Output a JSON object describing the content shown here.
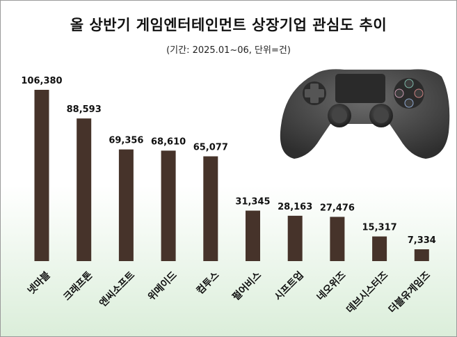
{
  "chart_data": {
    "type": "bar",
    "title": "올 상반기 게임엔터테인먼트 상장기업 관심도 추이",
    "subtitle": "(기간: 2025.01~06, 단위=건)",
    "categories": [
      "넷마블",
      "크래프톤",
      "엔씨소프트",
      "위메이드",
      "컴투스",
      "펄어비스",
      "시프트업",
      "네오위즈",
      "데브시스터즈",
      "더블유게임즈"
    ],
    "values": [
      106380,
      88593,
      69356,
      68610,
      65077,
      31345,
      28163,
      27476,
      15317,
      7334
    ],
    "value_labels": [
      "106,380",
      "88,593",
      "69,356",
      "68,610",
      "65,077",
      "31,345",
      "28,163",
      "27,476",
      "15,317",
      "7,334"
    ],
    "xlabel": "",
    "ylabel": "",
    "ylim": [
      0,
      106380
    ],
    "bar_color": "#46332a",
    "image": "game-controller"
  }
}
